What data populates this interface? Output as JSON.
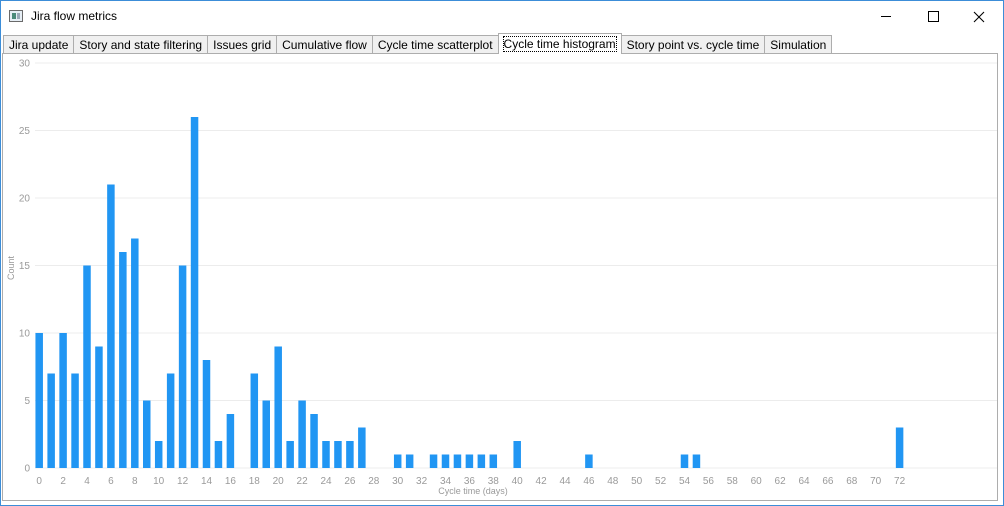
{
  "window": {
    "title": "Jira flow metrics",
    "icon": "app-window-icon"
  },
  "tabs": [
    {
      "label": "Jira update",
      "selected": false
    },
    {
      "label": "Story and state filtering",
      "selected": false
    },
    {
      "label": "Issues grid",
      "selected": false
    },
    {
      "label": "Cumulative flow",
      "selected": false
    },
    {
      "label": "Cycle time scatterplot",
      "selected": false
    },
    {
      "label": "Cycle time histogram",
      "selected": true
    },
    {
      "label": "Story point vs. cycle time",
      "selected": false
    },
    {
      "label": "Simulation",
      "selected": false
    }
  ],
  "colors": {
    "bar": "#2196f3",
    "grid": "#ececec",
    "tick_text": "#9a9a9a"
  },
  "chart_data": {
    "type": "bar",
    "xlabel": "Cycle time (days)",
    "ylabel": "Count",
    "ylim": [
      0,
      30
    ],
    "yticks": [
      0,
      5,
      10,
      15,
      20,
      25,
      30
    ],
    "xlim": [
      0,
      72
    ],
    "xticks": [
      0,
      2,
      4,
      6,
      8,
      10,
      12,
      14,
      16,
      18,
      20,
      22,
      24,
      26,
      28,
      30,
      32,
      34,
      36,
      38,
      40,
      42,
      44,
      46,
      48,
      50,
      52,
      54,
      56,
      58,
      60,
      62,
      64,
      66,
      68,
      70,
      72
    ],
    "grid": true,
    "x": [
      0,
      1,
      2,
      3,
      4,
      5,
      6,
      7,
      8,
      9,
      10,
      11,
      12,
      13,
      14,
      15,
      16,
      18,
      19,
      20,
      21,
      22,
      23,
      24,
      25,
      26,
      27,
      30,
      31,
      33,
      34,
      35,
      36,
      37,
      38,
      40,
      46,
      54,
      55,
      72
    ],
    "values": [
      10,
      7,
      10,
      7,
      15,
      9,
      21,
      16,
      17,
      5,
      2,
      7,
      15,
      26,
      8,
      2,
      4,
      7,
      5,
      9,
      2,
      5,
      4,
      2,
      2,
      2,
      3,
      1,
      1,
      1,
      1,
      1,
      1,
      1,
      1,
      2,
      1,
      1,
      1,
      3
    ]
  }
}
